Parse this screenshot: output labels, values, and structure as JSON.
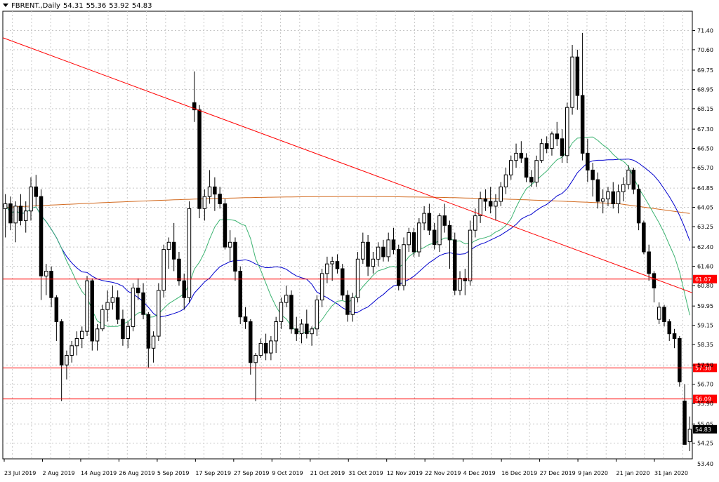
{
  "header": {
    "symbol": "FBRENT.,Daily",
    "open": "54.31",
    "high": "55.36",
    "low": "53.92",
    "close": "54.83"
  },
  "chart_data": {
    "type": "candlestick",
    "title": "FBRENT.,Daily",
    "ylim": [
      53.6,
      72.2
    ],
    "y_ticks": [
      "53.40",
      "54.25",
      "55.05",
      "55.90",
      "56.70",
      "57.50",
      "58.35",
      "59.15",
      "59.95",
      "60.80",
      "61.60",
      "62.40",
      "63.25",
      "64.05",
      "64.85",
      "65.70",
      "66.50",
      "67.30",
      "68.15",
      "68.95",
      "69.75",
      "70.60",
      "71.40"
    ],
    "x_labels": [
      "23 Jul 2019",
      "2 Aug 2019",
      "14 Aug 2019",
      "26 Aug 2019",
      "5 Sep 2019",
      "17 Sep 2019",
      "27 Sep 2019",
      "9 Oct 2019",
      "21 Oct 2019",
      "31 Oct 2019",
      "12 Nov 2019",
      "22 Nov 2019",
      "4 Dec 2019",
      "16 Dec 2019",
      "27 Dec 2019",
      "9 Jan 2020",
      "21 Jan 2020",
      "31 Jan 2020"
    ],
    "horizontal_levels": [
      {
        "value": 61.07,
        "label": "61.07",
        "color": "#ff0000"
      },
      {
        "value": 57.38,
        "label": "57.38",
        "color": "#ff0000"
      },
      {
        "value": 56.09,
        "label": "56.09",
        "color": "#ff0000"
      }
    ],
    "current_price": {
      "value": 54.83,
      "label": "54.83"
    },
    "trendline": {
      "from": {
        "bar": 0,
        "value": 71.1
      },
      "to": {
        "bar": 141,
        "value": 60.5
      },
      "color": "#ff0000"
    },
    "ma_colors": {
      "fast": "#3cb371",
      "mid": "#0000cd",
      "slow": "#d2691e"
    },
    "candles": [
      [
        64.0,
        64.6,
        62.8,
        64.2
      ],
      [
        64.2,
        64.5,
        63.1,
        63.4
      ],
      [
        63.4,
        64.3,
        62.6,
        64.1
      ],
      [
        64.1,
        64.6,
        63.3,
        63.5
      ],
      [
        63.5,
        64.3,
        63.0,
        63.9
      ],
      [
        63.9,
        65.3,
        63.5,
        64.9
      ],
      [
        64.9,
        65.4,
        64.1,
        64.5
      ],
      [
        64.5,
        64.8,
        60.2,
        61.2
      ],
      [
        61.2,
        61.7,
        60.4,
        61.4
      ],
      [
        61.4,
        61.6,
        59.9,
        60.3
      ],
      [
        60.3,
        60.4,
        58.5,
        59.3
      ],
      [
        59.3,
        59.4,
        56.0,
        57.5
      ],
      [
        57.5,
        58.1,
        56.9,
        57.9
      ],
      [
        57.9,
        58.5,
        57.6,
        58.3
      ],
      [
        58.3,
        58.9,
        57.9,
        58.6
      ],
      [
        58.6,
        59.1,
        58.2,
        58.9
      ],
      [
        58.9,
        61.2,
        58.7,
        61.0
      ],
      [
        61.0,
        61.1,
        58.1,
        58.5
      ],
      [
        58.5,
        59.2,
        58.1,
        59.0
      ],
      [
        59.0,
        60.0,
        58.9,
        59.8
      ],
      [
        59.8,
        60.6,
        59.3,
        60.1
      ],
      [
        60.1,
        60.8,
        59.8,
        60.3
      ],
      [
        60.3,
        60.6,
        59.2,
        59.4
      ],
      [
        59.4,
        59.8,
        58.3,
        58.6
      ],
      [
        58.6,
        59.3,
        58.2,
        59.1
      ],
      [
        59.1,
        60.9,
        58.9,
        60.7
      ],
      [
        60.7,
        61.1,
        60.2,
        60.5
      ],
      [
        60.5,
        60.9,
        59.4,
        59.6
      ],
      [
        59.6,
        59.7,
        57.4,
        58.2
      ],
      [
        58.2,
        58.9,
        57.6,
        58.7
      ],
      [
        58.7,
        60.9,
        58.5,
        60.6
      ],
      [
        60.6,
        62.5,
        60.3,
        62.3
      ],
      [
        62.3,
        62.8,
        61.5,
        62.6
      ],
      [
        62.6,
        63.4,
        61.4,
        61.9
      ],
      [
        61.9,
        62.2,
        60.8,
        61.0
      ],
      [
        61.0,
        61.3,
        59.8,
        60.3
      ],
      [
        60.3,
        64.3,
        60.1,
        64.0
      ],
      [
        68.4,
        69.7,
        67.6,
        68.1
      ],
      [
        68.1,
        68.3,
        63.6,
        64.0
      ],
      [
        64.0,
        64.8,
        63.5,
        64.5
      ],
      [
        64.5,
        65.6,
        64.2,
        64.9
      ],
      [
        64.9,
        65.3,
        63.9,
        64.6
      ],
      [
        64.6,
        64.9,
        64.0,
        64.2
      ],
      [
        64.2,
        64.4,
        62.3,
        62.4
      ],
      [
        62.4,
        63.1,
        61.8,
        62.6
      ],
      [
        62.6,
        62.8,
        61.0,
        61.4
      ],
      [
        61.4,
        61.6,
        59.2,
        59.5
      ],
      [
        59.5,
        59.9,
        59.0,
        59.3
      ],
      [
        59.3,
        59.4,
        57.1,
        57.6
      ],
      [
        57.6,
        58.0,
        56.0,
        57.9
      ],
      [
        57.9,
        58.6,
        57.8,
        58.4
      ],
      [
        58.4,
        58.8,
        57.7,
        58.0
      ],
      [
        58.0,
        58.7,
        57.7,
        58.5
      ],
      [
        58.5,
        59.5,
        58.0,
        59.3
      ],
      [
        59.3,
        60.3,
        59.0,
        60.1
      ],
      [
        60.1,
        60.8,
        59.9,
        60.4
      ],
      [
        60.4,
        60.6,
        58.8,
        59.0
      ],
      [
        59.0,
        59.5,
        58.5,
        58.8
      ],
      [
        58.8,
        59.4,
        58.4,
        59.2
      ],
      [
        59.2,
        59.8,
        58.6,
        58.8
      ],
      [
        58.8,
        59.1,
        58.3,
        59.0
      ],
      [
        59.0,
        60.4,
        58.7,
        60.2
      ],
      [
        60.2,
        61.5,
        59.9,
        61.3
      ],
      [
        61.3,
        62.0,
        60.9,
        61.7
      ],
      [
        61.7,
        62.0,
        61.0,
        61.8
      ],
      [
        61.8,
        62.1,
        61.3,
        61.5
      ],
      [
        61.5,
        61.7,
        60.2,
        60.4
      ],
      [
        60.4,
        60.6,
        59.3,
        59.6
      ],
      [
        59.6,
        60.5,
        59.3,
        60.3
      ],
      [
        60.3,
        62.2,
        60.1,
        61.9
      ],
      [
        61.9,
        63.0,
        61.7,
        62.6
      ],
      [
        62.6,
        62.9,
        61.2,
        61.6
      ],
      [
        61.6,
        62.2,
        61.3,
        61.9
      ],
      [
        61.9,
        62.6,
        61.6,
        62.4
      ],
      [
        62.4,
        62.7,
        61.8,
        62.0
      ],
      [
        62.0,
        63.0,
        61.8,
        62.7
      ],
      [
        62.7,
        63.2,
        62.1,
        62.3
      ],
      [
        62.3,
        62.5,
        60.6,
        60.8
      ],
      [
        60.8,
        62.8,
        60.6,
        62.5
      ],
      [
        62.5,
        63.2,
        62.2,
        63.0
      ],
      [
        63.0,
        63.2,
        62.0,
        62.2
      ],
      [
        62.2,
        63.6,
        62.0,
        63.4
      ],
      [
        63.4,
        64.1,
        63.1,
        63.8
      ],
      [
        63.8,
        64.2,
        62.9,
        63.1
      ],
      [
        63.1,
        63.4,
        62.3,
        62.5
      ],
      [
        62.5,
        63.8,
        62.2,
        63.7
      ],
      [
        63.7,
        64.2,
        63.0,
        63.3
      ],
      [
        63.3,
        63.5,
        61.5,
        62.7
      ],
      [
        62.7,
        63.0,
        60.4,
        60.6
      ],
      [
        60.6,
        61.4,
        60.4,
        61.1
      ],
      [
        61.1,
        61.5,
        60.4,
        61.0
      ],
      [
        61.0,
        63.5,
        60.8,
        63.1
      ],
      [
        63.1,
        64.0,
        62.8,
        63.7
      ],
      [
        63.7,
        64.7,
        63.4,
        64.4
      ],
      [
        64.4,
        64.8,
        63.9,
        64.3
      ],
      [
        64.3,
        64.9,
        63.8,
        64.1
      ],
      [
        64.1,
        64.6,
        63.5,
        64.3
      ],
      [
        64.3,
        65.1,
        64.1,
        64.9
      ],
      [
        64.9,
        65.7,
        64.6,
        65.4
      ],
      [
        65.4,
        66.2,
        65.2,
        66.0
      ],
      [
        66.0,
        66.7,
        65.7,
        66.3
      ],
      [
        66.3,
        66.8,
        65.9,
        66.1
      ],
      [
        66.1,
        66.3,
        65.1,
        65.3
      ],
      [
        65.3,
        65.6,
        64.9,
        65.1
      ],
      [
        65.1,
        66.2,
        64.9,
        66.0
      ],
      [
        66.0,
        66.9,
        65.9,
        66.7
      ],
      [
        66.7,
        67.0,
        66.3,
        66.5
      ],
      [
        66.5,
        67.2,
        66.2,
        67.1
      ],
      [
        67.1,
        67.6,
        66.6,
        66.9
      ],
      [
        66.9,
        67.3,
        65.9,
        66.2
      ],
      [
        66.2,
        68.4,
        65.9,
        68.2
      ],
      [
        68.2,
        70.8,
        67.9,
        70.3
      ],
      [
        70.3,
        70.6,
        68.1,
        68.7
      ],
      [
        68.7,
        71.3,
        66.0,
        66.3
      ],
      [
        66.3,
        66.9,
        65.1,
        65.6
      ],
      [
        65.6,
        65.9,
        64.5,
        65.2
      ],
      [
        65.2,
        65.5,
        64.0,
        64.3
      ],
      [
        64.3,
        64.8,
        63.8,
        64.4
      ],
      [
        64.4,
        64.9,
        64.1,
        64.7
      ],
      [
        64.7,
        65.1,
        64.0,
        64.2
      ],
      [
        64.2,
        65.0,
        63.8,
        64.7
      ],
      [
        64.7,
        65.3,
        64.3,
        65.0
      ],
      [
        65.0,
        65.8,
        64.8,
        65.6
      ],
      [
        65.6,
        65.7,
        64.6,
        64.8
      ],
      [
        64.8,
        65.0,
        63.1,
        63.4
      ],
      [
        63.4,
        63.5,
        62.1,
        62.2
      ],
      [
        62.2,
        62.5,
        61.0,
        61.3
      ],
      [
        61.3,
        61.4,
        60.1,
        60.7
      ],
      [
        59.4,
        60.1,
        59.2,
        59.9
      ],
      [
        59.9,
        60.0,
        59.1,
        59.3
      ],
      [
        59.3,
        59.4,
        58.5,
        58.8
      ],
      [
        58.8,
        59.0,
        58.2,
        58.6
      ],
      [
        58.6,
        58.7,
        56.6,
        56.8
      ],
      [
        56.0,
        56.7,
        54.2,
        54.2
      ],
      [
        54.31,
        55.36,
        53.92,
        54.83
      ]
    ]
  }
}
